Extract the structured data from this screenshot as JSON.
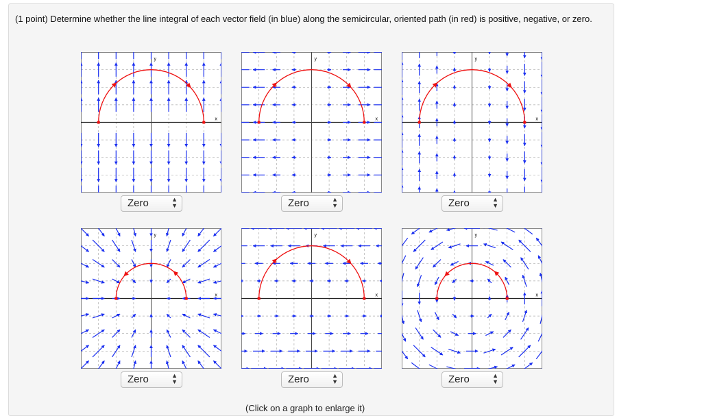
{
  "question": "(1 point) Determine whether the line integral of each vector field (in blue) along the semicircular, oriented path (in red) is positive, negative, or zero.",
  "axis_labels": {
    "x": "x",
    "y": "y"
  },
  "colors": {
    "field": "#1a2ff0",
    "path": "#ee1111",
    "grid": "#aaaaaa"
  },
  "answers": [
    "Zero",
    "Zero",
    "Zero",
    "Zero",
    "Zero",
    "Zero"
  ],
  "select_icon": "up-down-chevron-icon",
  "caption": "(Click on a graph to enlarge it)"
}
